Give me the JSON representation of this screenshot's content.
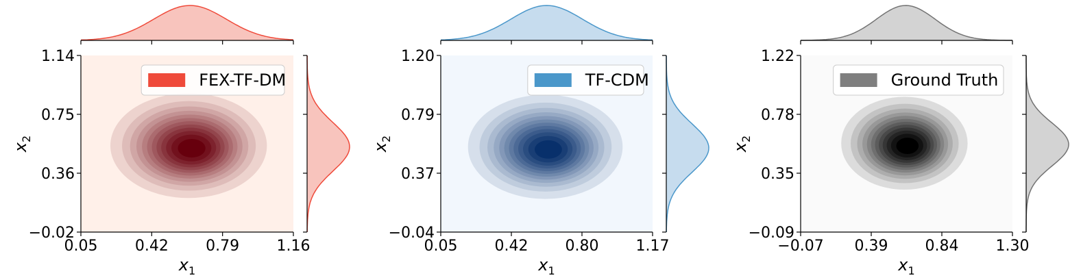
{
  "chart_data": [
    {
      "type": "kde2d",
      "legend": "FEX-TF-DM",
      "legend_color": "#ef4a3a",
      "legend_position": "top-right",
      "cmap": [
        "#fff0e9",
        "#67000d"
      ],
      "line_color": "#ef4a3a",
      "fill_color": "#f8c4bd",
      "xlabel": "x1",
      "ylabel": "x2",
      "xlim": [
        0.05,
        1.16
      ],
      "ylim": [
        -0.02,
        1.14
      ],
      "xticks": [
        "0.05",
        "0.42",
        "0.79",
        "1.16"
      ],
      "yticks": [
        "-0.02",
        "0.36",
        "0.75",
        "1.14"
      ],
      "center": [
        0.62,
        0.54
      ],
      "spread": [
        0.19,
        0.16
      ],
      "grid": false
    },
    {
      "type": "kde2d",
      "legend": "TF-CDM",
      "legend_color": "#4a97ca",
      "legend_position": "top-right",
      "cmap": [
        "#f2f7fd",
        "#08306b"
      ],
      "line_color": "#4a97ca",
      "fill_color": "#c6dcee",
      "xlabel": "x1",
      "ylabel": "x2",
      "xlim": [
        0.05,
        1.17
      ],
      "ylim": [
        -0.04,
        1.2
      ],
      "xticks": [
        "0.05",
        "0.42",
        "0.80",
        "1.17"
      ],
      "yticks": [
        "-0.04",
        "0.37",
        "0.79",
        "1.20"
      ],
      "center": [
        0.61,
        0.55
      ],
      "spread": [
        0.19,
        0.17
      ],
      "grid": false
    },
    {
      "type": "kde2d",
      "legend": "Ground Truth",
      "legend_color": "#7f7f7f",
      "legend_position": "top-right",
      "cmap": [
        "#fafafa",
        "#000000"
      ],
      "line_color": "#737373",
      "fill_color": "#d3d3d3",
      "xlabel": "x1",
      "ylabel": "x2",
      "xlim": [
        -0.07,
        1.3
      ],
      "ylim": [
        -0.09,
        1.22
      ],
      "xticks": [
        "-0.07",
        "0.39",
        "0.84",
        "1.30"
      ],
      "yticks": [
        "-0.09",
        "0.35",
        "0.78",
        "1.22"
      ],
      "center": [
        0.61,
        0.56
      ],
      "spread": [
        0.19,
        0.16
      ],
      "grid": false
    }
  ]
}
